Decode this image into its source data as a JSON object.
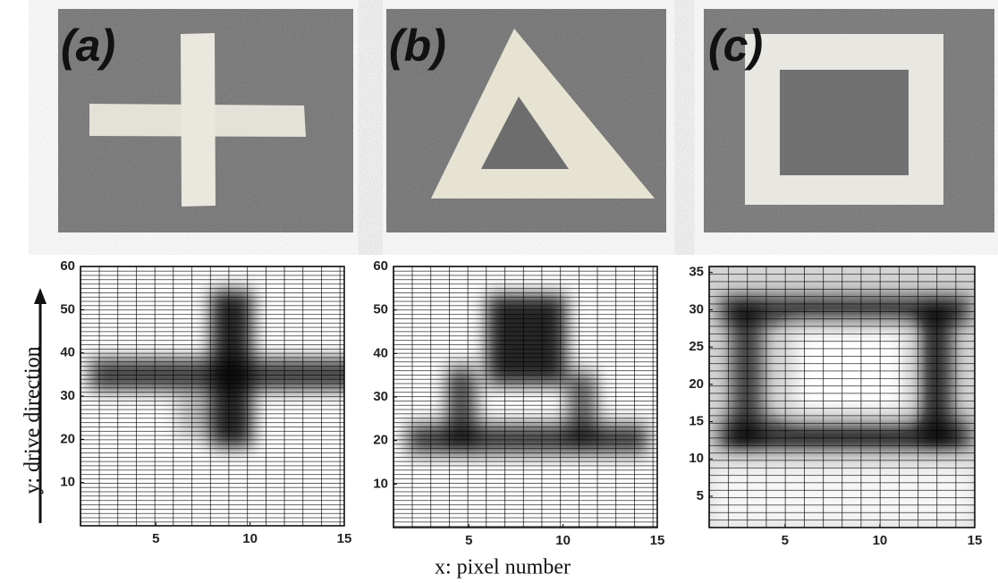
{
  "panels": [
    {
      "label": "(a)",
      "xlim": [
        1,
        15
      ],
      "ylim": [
        0,
        60
      ],
      "xticks": [
        5,
        10,
        15
      ],
      "yticks": [
        10,
        20,
        30,
        40,
        50,
        60
      ]
    },
    {
      "label": "(b)",
      "xlim": [
        1,
        15
      ],
      "ylim": [
        0,
        60
      ],
      "xticks": [
        5,
        10,
        15
      ],
      "yticks": [
        10,
        20,
        30,
        40,
        50,
        60
      ]
    },
    {
      "label": "(c)",
      "xlim": [
        1,
        15
      ],
      "ylim": [
        0.8,
        35.8
      ],
      "xticks": [
        5,
        10,
        15
      ],
      "yticks": [
        5,
        10,
        15,
        20,
        25,
        30,
        35
      ]
    }
  ],
  "x_label": "x: pixel number",
  "y_label": "y: drive direction"
}
